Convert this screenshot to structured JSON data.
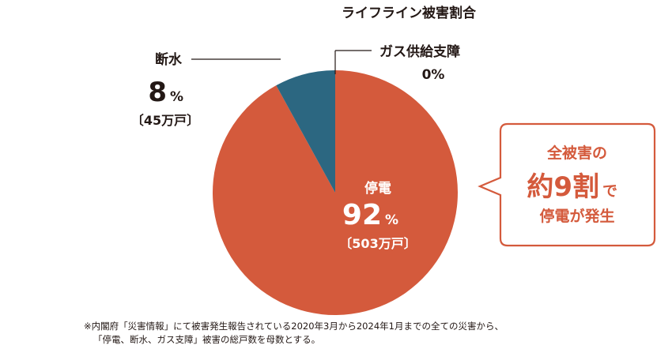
{
  "chart_data": {
    "type": "pie",
    "title": "ライフライン被害割合",
    "slices": [
      {
        "label": "停電",
        "value": 92,
        "pct_number": "92",
        "pct_sign": "%",
        "detail": "〔503万戸〕",
        "color": "#d45a3c"
      },
      {
        "label": "断水",
        "value": 8,
        "pct_number": "8",
        "pct_sign": "%",
        "detail": "〔45万戸〕",
        "color": "#2c6781"
      },
      {
        "label": "ガス供給支障",
        "value": 0,
        "pct_text": "0%",
        "color": "#2c6781"
      }
    ]
  },
  "callout": {
    "line1": "全被害の",
    "line2_main": "約9割",
    "line2_suffix": "で",
    "line3": "停電が発生",
    "color": "#d45a3c"
  },
  "footnote": {
    "line1": "※内閣府「災害情報」にて被害発生報告されている2020年3月から2024年1月までの全ての災害から、",
    "line2": "「停電、断水、ガス支障」被害の総戸数を母数とする。"
  }
}
